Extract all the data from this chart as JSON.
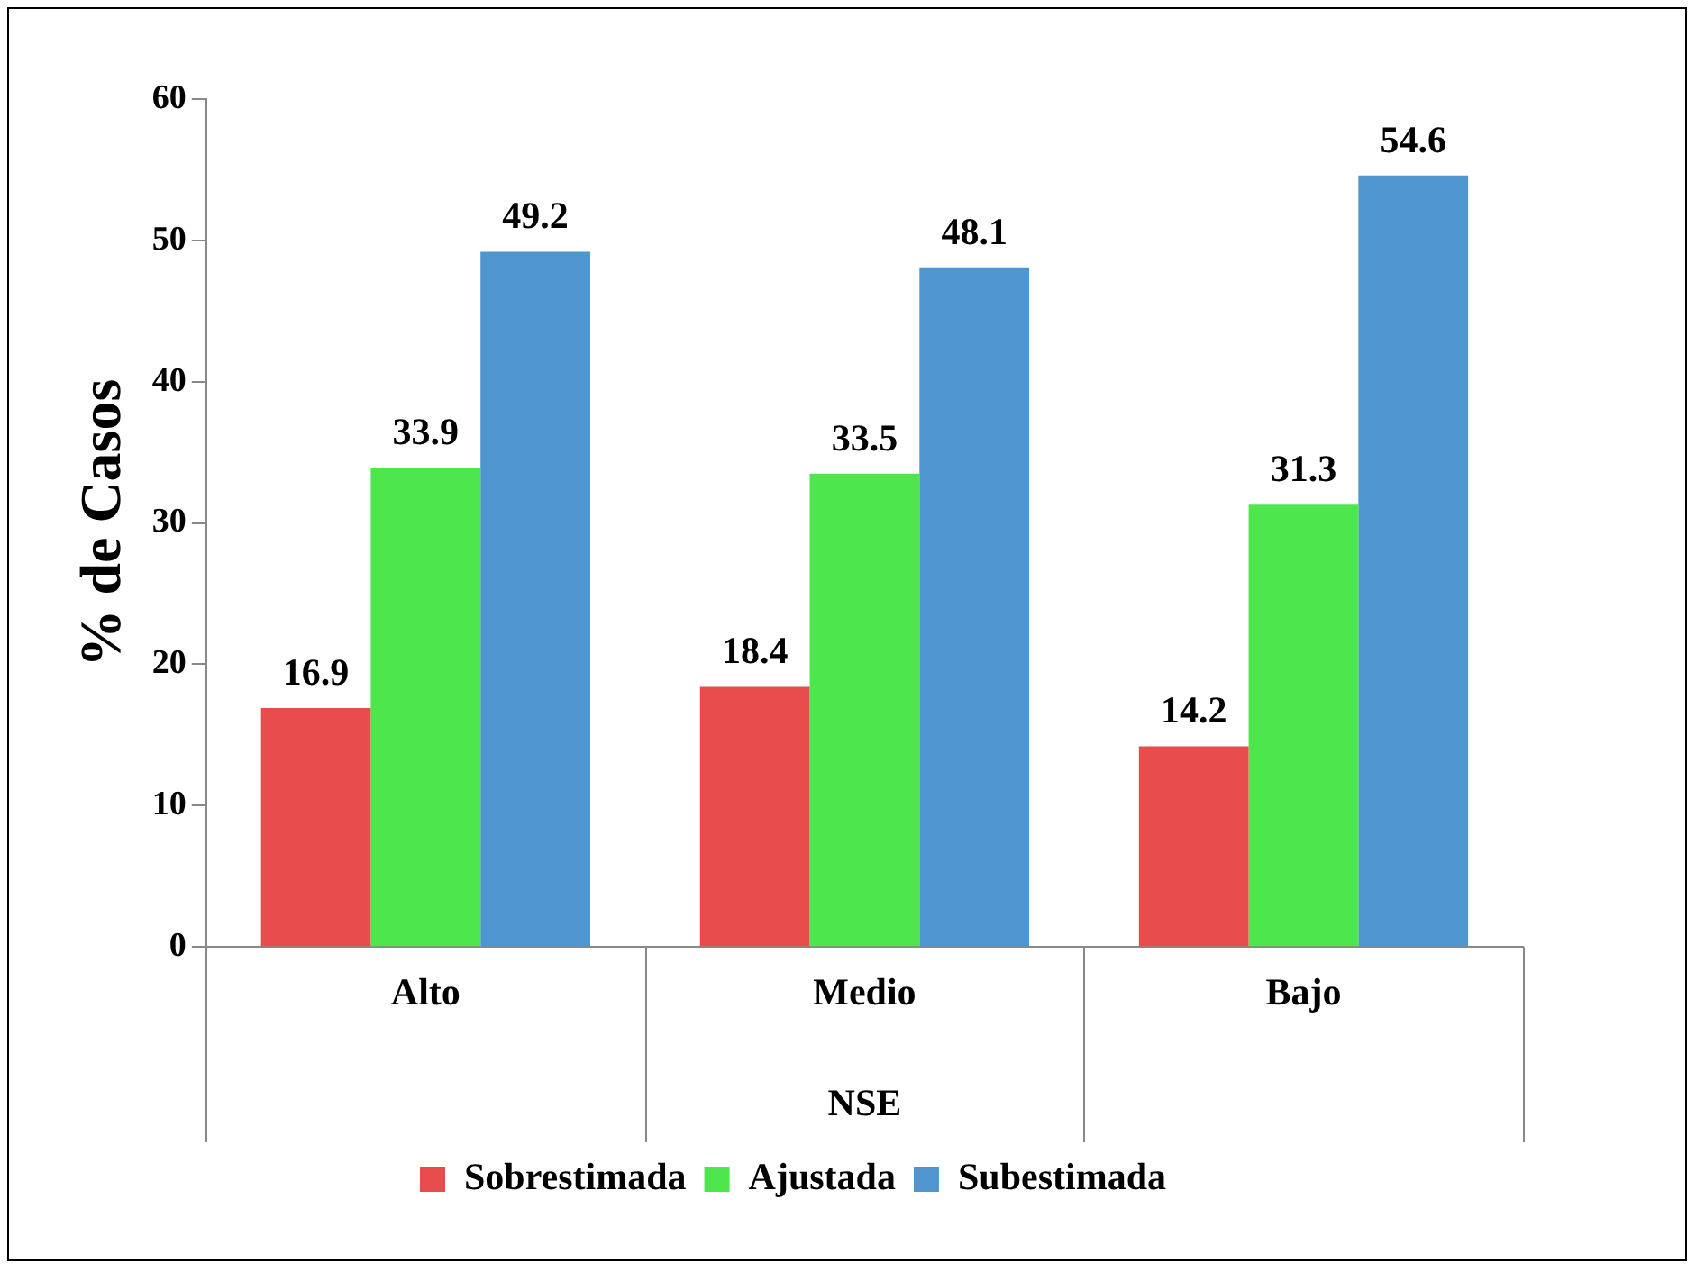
{
  "chart_data": {
    "type": "bar",
    "xlabel": "NSE",
    "ylabel": "% de Casos",
    "categories": [
      "Alto",
      "Medio",
      "Bajo"
    ],
    "series": [
      {
        "name": "Sobrestimada",
        "color": "#e84c4c",
        "values": [
          16.9,
          18.4,
          14.2
        ]
      },
      {
        "name": "Ajustada",
        "color": "#4de64d",
        "values": [
          33.9,
          33.5,
          31.3
        ]
      },
      {
        "name": "Subestimada",
        "color": "#4f95d0",
        "values": [
          49.2,
          48.1,
          54.6
        ]
      }
    ],
    "ylim": [
      0,
      60
    ],
    "yticks": [
      0,
      10,
      20,
      30,
      40,
      50,
      60
    ],
    "grid": false,
    "legend": "bottom",
    "data_labels": true
  }
}
